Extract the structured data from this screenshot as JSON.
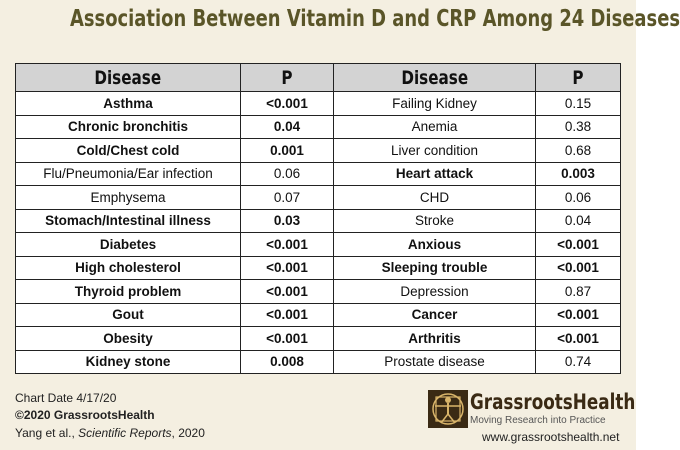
{
  "header": {
    "title": "Association Between Vitamin D and CRP Among 24 Diseases"
  },
  "table": {
    "columns": [
      "Disease",
      "P",
      "Disease",
      "P"
    ],
    "rows": [
      [
        "Asthma",
        "<0.001",
        "Failing Kidney",
        "0.15"
      ],
      [
        "Chronic bronchitis",
        "0.04",
        "Anemia",
        "0.38"
      ],
      [
        "Cold/Chest cold",
        "0.001",
        "Liver condition",
        "0.68"
      ],
      [
        "Flu/Pneumonia/Ear infection",
        "0.06",
        "Heart attack",
        "0.003"
      ],
      [
        "Emphysema",
        "0.07",
        "CHD",
        "0.06"
      ],
      [
        "Stomach/Intestinal illness",
        "0.03",
        "Stroke",
        "0.04"
      ],
      [
        "Diabetes",
        "<0.001",
        "Anxious",
        "<0.001"
      ],
      [
        "High cholesterol",
        "<0.001",
        "Sleeping trouble",
        "<0.001"
      ],
      [
        "Thyroid problem",
        "<0.001",
        "Depression",
        "0.87"
      ],
      [
        "Gout",
        "<0.001",
        "Cancer",
        "<0.001"
      ],
      [
        "Obesity",
        "<0.001",
        "Arthritis",
        "<0.001"
      ],
      [
        "Kidney stone",
        "0.008",
        "Prostate disease",
        "0.74"
      ]
    ],
    "bold": [
      [
        true,
        false
      ],
      [
        true,
        false
      ],
      [
        true,
        false
      ],
      [
        false,
        true
      ],
      [
        false,
        false
      ],
      [
        true,
        false
      ],
      [
        true,
        true
      ],
      [
        true,
        true
      ],
      [
        true,
        false
      ],
      [
        true,
        true
      ],
      [
        true,
        true
      ],
      [
        true,
        false
      ]
    ]
  },
  "footer": {
    "date": "Chart Date 4/17/20",
    "copyright": "©2020 GrassrootsHealth",
    "citation": [
      "Yang et al., ",
      "Scientific Reports",
      ", 2020"
    ]
  },
  "logo": {
    "name": "GrassrootsHealth",
    "tagline": "Moving Research into Practice",
    "url": "www.grassrootshealth.net"
  }
}
